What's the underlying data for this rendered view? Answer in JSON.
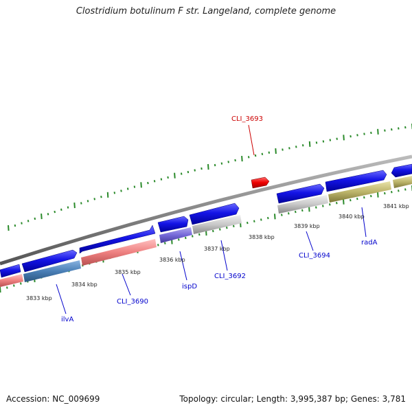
{
  "title": "Clostridium botulinum F str. Langeland, complete genome",
  "footer": {
    "accession": "Accession: NC_009699",
    "summary": "Topology: circular; Length: 3,995,387 bp; Genes: 3,781"
  },
  "colors": {
    "forward_cds": "#1010e0",
    "highlight": "#ee0000",
    "backbone": "#888888",
    "ticks": "#2a8a2a",
    "label_blue": "#0000cc",
    "label_red": "#cc0000"
  },
  "tick_labels": [
    {
      "name": "tick-3833",
      "text": "3833 kbp"
    },
    {
      "name": "tick-3834",
      "text": "3834 kbp"
    },
    {
      "name": "tick-3835",
      "text": "3835 kbp"
    },
    {
      "name": "tick-3836",
      "text": "3836 kbp"
    },
    {
      "name": "tick-3837",
      "text": "3837 kbp"
    },
    {
      "name": "tick-3838",
      "text": "3838 kbp"
    },
    {
      "name": "tick-3839",
      "text": "3839 kbp"
    },
    {
      "name": "tick-3840",
      "text": "3840 kbp"
    },
    {
      "name": "tick-3841",
      "text": "3841 kbp"
    }
  ],
  "gene_labels": [
    {
      "name": "label-CLI_3693",
      "text": "CLI_3693",
      "color": "#cc0000"
    },
    {
      "name": "label-CLI_3694",
      "text": "CLI_3694",
      "color": "#0000cc"
    },
    {
      "name": "label-radA",
      "text": "radA",
      "color": "#0000cc"
    },
    {
      "name": "label-ilvA",
      "text": "ilvA",
      "color": "#0000cc"
    },
    {
      "name": "label-CLI_3690",
      "text": "CLI_3690",
      "color": "#0000cc"
    },
    {
      "name": "label-ispD",
      "text": "ispD",
      "color": "#0000cc"
    },
    {
      "name": "label-CLI_3692",
      "text": "CLI_3692",
      "color": "#0000cc"
    }
  ]
}
